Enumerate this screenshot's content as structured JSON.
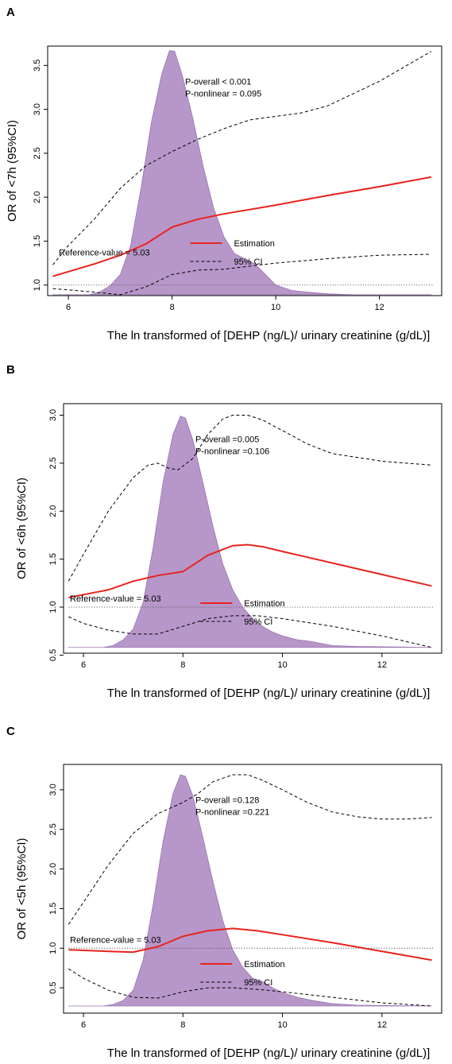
{
  "chart_data": [
    {
      "panel_label": "A",
      "type": "line",
      "xlabel": "The ln transformed of [DEHP (ng/L)/ urinary creatinine (g/dL)]",
      "ylabel": "OR of <7h (95%CI)",
      "xlim": [
        5.6,
        13.2
      ],
      "ylim": [
        0.88,
        3.72
      ],
      "xticks": [
        6,
        8,
        10,
        12
      ],
      "yticks": [
        1.0,
        1.5,
        2.0,
        2.5,
        3.0,
        3.5
      ],
      "annotations": [
        "P-overall < 0.001",
        "P-nonlinear = 0.095"
      ],
      "reference_label": "Reference-value = 5.03",
      "reference_y": 1.0,
      "legend": [
        {
          "label": "Estimation",
          "style": "solid",
          "color": "#e8231e"
        },
        {
          "label": "95% CI",
          "style": "dashed",
          "color": "#000000"
        }
      ],
      "series": [
        {
          "name": "Estimation",
          "x": [
            5.7,
            6.5,
            7.0,
            7.5,
            8.0,
            8.5,
            9.0,
            10.0,
            11.0,
            12.0,
            13.0
          ],
          "y": [
            1.1,
            1.24,
            1.34,
            1.47,
            1.66,
            1.75,
            1.81,
            1.91,
            2.02,
            2.12,
            2.23
          ]
        },
        {
          "name": "95% CI",
          "x": [
            5.7,
            6.0,
            6.5,
            7.0,
            7.5,
            8.0,
            8.5,
            9.0,
            9.5,
            10.0,
            10.5,
            11.0,
            12.0,
            13.0
          ],
          "y": [
            1.23,
            1.45,
            1.75,
            2.1,
            2.36,
            2.52,
            2.66,
            2.78,
            2.88,
            2.92,
            2.96,
            3.04,
            3.32,
            3.66
          ]
        },
        {
          "name": "95% CI",
          "x": [
            5.7,
            6.5,
            7.0,
            7.5,
            8.0,
            8.5,
            9.0,
            10.0,
            11.0,
            12.0,
            13.0
          ],
          "y": [
            0.96,
            0.92,
            0.89,
            0.98,
            1.12,
            1.17,
            1.18,
            1.25,
            1.3,
            1.34,
            1.35
          ]
        }
      ],
      "density": {
        "baseline": 0.89,
        "x": [
          5.7,
          6.4,
          6.6,
          6.8,
          7.0,
          7.2,
          7.4,
          7.6,
          7.8,
          7.95,
          8.05,
          8.2,
          8.4,
          8.6,
          8.8,
          9.0,
          9.2,
          9.4,
          9.6,
          9.8,
          10.0,
          10.3,
          10.6,
          11.0,
          11.5,
          13.0
        ],
        "y": [
          0.89,
          0.89,
          0.92,
          0.99,
          1.12,
          1.45,
          2.1,
          2.85,
          3.4,
          3.67,
          3.66,
          3.38,
          2.9,
          2.35,
          1.88,
          1.55,
          1.36,
          1.3,
          1.24,
          1.12,
          1.0,
          0.94,
          0.92,
          0.9,
          0.89,
          0.89
        ]
      }
    },
    {
      "panel_label": "B",
      "type": "line",
      "xlabel": "The ln transformed of [DEHP (ng/L)/ urinary creatinine (g/dL)]",
      "ylabel": "OR of <6h (95%CI)",
      "xlim": [
        5.6,
        13.2
      ],
      "ylim": [
        0.52,
        3.12
      ],
      "xticks": [
        6,
        8,
        10,
        12
      ],
      "yticks": [
        0.5,
        1.0,
        1.5,
        2.0,
        2.5,
        3.0
      ],
      "annotations": [
        "P-overall =0.005",
        "P-nonlinear =0.106"
      ],
      "reference_label": "Reference-value = 5.03",
      "reference_y": 1.0,
      "legend": [
        {
          "label": "Estimation",
          "style": "solid",
          "color": "#e8231e"
        },
        {
          "label": "95% CI",
          "style": "dashed",
          "color": "#000000"
        }
      ],
      "series": [
        {
          "name": "Estimation",
          "x": [
            5.7,
            6.5,
            7.0,
            7.5,
            8.0,
            8.5,
            9.0,
            9.3,
            9.6,
            10.0,
            11.0,
            12.0,
            13.0
          ],
          "y": [
            1.1,
            1.18,
            1.27,
            1.33,
            1.37,
            1.54,
            1.64,
            1.65,
            1.63,
            1.58,
            1.46,
            1.34,
            1.22
          ]
        },
        {
          "name": "95% CI",
          "x": [
            5.7,
            6.0,
            6.5,
            7.0,
            7.3,
            7.5,
            7.7,
            7.9,
            8.2,
            8.5,
            8.8,
            9.0,
            9.3,
            9.6,
            10.0,
            10.5,
            11.0,
            12.0,
            13.0
          ],
          "y": [
            1.27,
            1.55,
            2.0,
            2.35,
            2.48,
            2.5,
            2.45,
            2.43,
            2.55,
            2.8,
            2.96,
            3.0,
            3.0,
            2.95,
            2.84,
            2.7,
            2.6,
            2.52,
            2.48
          ]
        },
        {
          "name": "95% CI",
          "x": [
            5.7,
            6.0,
            6.5,
            7.0,
            7.5,
            8.0,
            8.5,
            9.0,
            9.5,
            10.0,
            11.0,
            12.0,
            13.0
          ],
          "y": [
            0.9,
            0.83,
            0.76,
            0.72,
            0.72,
            0.8,
            0.88,
            0.91,
            0.91,
            0.88,
            0.8,
            0.7,
            0.58
          ]
        }
      ],
      "density": {
        "baseline": 0.58,
        "x": [
          5.7,
          6.4,
          6.6,
          6.8,
          7.0,
          7.2,
          7.4,
          7.6,
          7.8,
          7.95,
          8.05,
          8.2,
          8.4,
          8.6,
          8.8,
          9.0,
          9.2,
          9.4,
          9.6,
          9.8,
          10.0,
          10.3,
          10.6,
          11.0,
          11.5,
          13.0
        ],
        "y": [
          0.58,
          0.58,
          0.6,
          0.66,
          0.77,
          1.05,
          1.62,
          2.3,
          2.8,
          2.99,
          2.97,
          2.74,
          2.3,
          1.85,
          1.45,
          1.18,
          1.0,
          0.88,
          0.8,
          0.74,
          0.7,
          0.66,
          0.64,
          0.6,
          0.59,
          0.58
        ]
      }
    },
    {
      "panel_label": "C",
      "type": "line",
      "xlabel": "The ln transformed of [DEHP (ng/L)/ urinary creatinine (g/dL)]",
      "ylabel": "OR of <5h (95%CI)",
      "xlim": [
        5.6,
        13.2
      ],
      "ylim": [
        0.18,
        3.32
      ],
      "xticks": [
        6,
        8,
        10,
        12
      ],
      "yticks": [
        0.5,
        1.0,
        1.5,
        2.0,
        2.5,
        3.0
      ],
      "annotations": [
        "P-overall =0.128",
        "P-nonlinear =0.221"
      ],
      "reference_label": "Reference-value = 5.03",
      "reference_y": 1.0,
      "legend": [
        {
          "label": "Estimation",
          "style": "solid",
          "color": "#e8231e"
        },
        {
          "label": "95% CI",
          "style": "dashed",
          "color": "#000000"
        }
      ],
      "series": [
        {
          "name": "Estimation",
          "x": [
            5.7,
            6.5,
            7.0,
            7.5,
            8.0,
            8.5,
            9.0,
            9.5,
            10.0,
            11.0,
            12.0,
            13.0
          ],
          "y": [
            0.98,
            0.96,
            0.95,
            1.02,
            1.15,
            1.22,
            1.25,
            1.22,
            1.17,
            1.07,
            0.96,
            0.85
          ]
        },
        {
          "name": "95% CI",
          "x": [
            5.7,
            6.0,
            6.5,
            7.0,
            7.5,
            8.0,
            8.3,
            8.6,
            9.0,
            9.3,
            9.6,
            10.0,
            10.5,
            11.0,
            11.5,
            12.0,
            12.5,
            13.0
          ],
          "y": [
            1.3,
            1.58,
            2.05,
            2.45,
            2.7,
            2.84,
            2.95,
            3.1,
            3.19,
            3.19,
            3.12,
            3.0,
            2.84,
            2.72,
            2.66,
            2.63,
            2.63,
            2.65
          ]
        },
        {
          "name": "95% CI",
          "x": [
            5.7,
            6.0,
            6.5,
            7.0,
            7.5,
            8.0,
            8.5,
            9.0,
            9.5,
            10.0,
            11.0,
            12.0,
            13.0
          ],
          "y": [
            0.74,
            0.62,
            0.47,
            0.38,
            0.37,
            0.45,
            0.5,
            0.5,
            0.48,
            0.45,
            0.38,
            0.31,
            0.27
          ]
        }
      ],
      "density": {
        "baseline": 0.27,
        "x": [
          5.7,
          6.4,
          6.6,
          6.8,
          7.0,
          7.2,
          7.4,
          7.6,
          7.8,
          7.95,
          8.05,
          8.2,
          8.4,
          8.6,
          8.8,
          9.0,
          9.2,
          9.4,
          9.6,
          9.8,
          10.0,
          10.3,
          10.6,
          11.0,
          11.5,
          13.0
        ],
        "y": [
          0.27,
          0.27,
          0.29,
          0.34,
          0.47,
          0.85,
          1.55,
          2.35,
          2.95,
          3.19,
          3.17,
          2.92,
          2.4,
          1.85,
          1.35,
          0.98,
          0.76,
          0.62,
          0.58,
          0.5,
          0.44,
          0.38,
          0.34,
          0.3,
          0.28,
          0.27
        ]
      }
    }
  ],
  "colors": {
    "estimation": "#e8231e",
    "ci": "#000000",
    "density_fill": "#b797c9",
    "density_edge": "#9b74b3",
    "reference_line": "#555555"
  }
}
